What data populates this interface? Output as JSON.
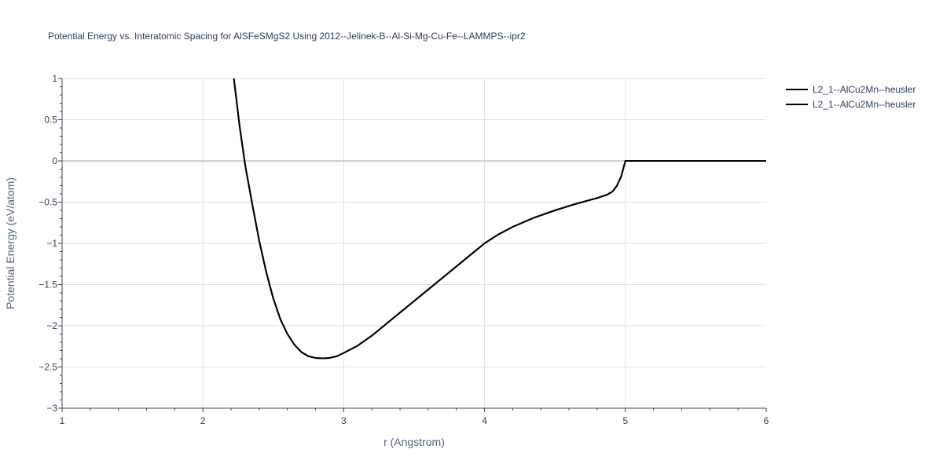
{
  "chart_data": {
    "type": "line",
    "title": "Potential Energy vs. Interatomic Spacing for AlSFeSMgS2 Using 2012--Jelinek-B--Al-Si-Mg-Cu-Fe--LAMMPS--ipr2",
    "xlabel": "r (Angstrom)",
    "ylabel": "Potential Energy (eV/atom)",
    "xlim": [
      1,
      6
    ],
    "ylim": [
      -3,
      1
    ],
    "xticks": [
      1,
      2,
      3,
      4,
      5,
      6
    ],
    "xtick_labels": [
      "1",
      "2",
      "3",
      "4",
      "5",
      "6"
    ],
    "yticks": [
      1,
      0.5,
      0,
      -0.5,
      -1,
      -1.5,
      -2,
      -2.5,
      -3
    ],
    "ytick_labels": [
      "1",
      "0.5",
      "0",
      "−0.5",
      "−1",
      "−1.5",
      "−2",
      "−2.5",
      "−3"
    ],
    "grid": true,
    "legend_position": "top-right",
    "line_color": "#000000",
    "series": [
      {
        "name": "L2_1--AlCu2Mn--heusler",
        "x": [
          2.22,
          2.26,
          2.3,
          2.35,
          2.4,
          2.45,
          2.5,
          2.55,
          2.6,
          2.65,
          2.7,
          2.75,
          2.8,
          2.85,
          2.9,
          2.95,
          3.0,
          3.1,
          3.2,
          3.3,
          3.4,
          3.5,
          3.6,
          3.7,
          3.85,
          4.0,
          4.1,
          4.2,
          4.35,
          4.5,
          4.65,
          4.8,
          4.87,
          4.91,
          4.94,
          4.97,
          5.0,
          5.5,
          6.0
        ],
        "y": [
          1.0,
          0.43,
          -0.05,
          -0.52,
          -0.97,
          -1.35,
          -1.67,
          -1.92,
          -2.1,
          -2.23,
          -2.32,
          -2.37,
          -2.39,
          -2.395,
          -2.39,
          -2.37,
          -2.33,
          -2.24,
          -2.12,
          -1.98,
          -1.84,
          -1.7,
          -1.56,
          -1.42,
          -1.21,
          -1.0,
          -0.89,
          -0.8,
          -0.69,
          -0.6,
          -0.52,
          -0.45,
          -0.41,
          -0.37,
          -0.3,
          -0.19,
          0.0,
          0.0,
          0.0
        ]
      },
      {
        "name": "L2_1--AlCu2Mn--heusler",
        "x": [
          2.22,
          2.26,
          2.3,
          2.35,
          2.4,
          2.45,
          2.5,
          2.55,
          2.6,
          2.65,
          2.7,
          2.75,
          2.8,
          2.85,
          2.9,
          2.95,
          3.0,
          3.1,
          3.2,
          3.3,
          3.4,
          3.5,
          3.6,
          3.7,
          3.85,
          4.0,
          4.1,
          4.2,
          4.35,
          4.5,
          4.65,
          4.8,
          4.87,
          4.91,
          4.94,
          4.97,
          5.0,
          5.5,
          6.0
        ],
        "y": [
          1.0,
          0.43,
          -0.05,
          -0.52,
          -0.97,
          -1.35,
          -1.67,
          -1.92,
          -2.1,
          -2.23,
          -2.32,
          -2.37,
          -2.39,
          -2.395,
          -2.39,
          -2.37,
          -2.33,
          -2.24,
          -2.12,
          -1.98,
          -1.84,
          -1.7,
          -1.56,
          -1.42,
          -1.21,
          -1.0,
          -0.89,
          -0.8,
          -0.69,
          -0.6,
          -0.52,
          -0.45,
          -0.41,
          -0.37,
          -0.3,
          -0.19,
          0.0,
          0.0,
          0.0
        ]
      }
    ]
  }
}
